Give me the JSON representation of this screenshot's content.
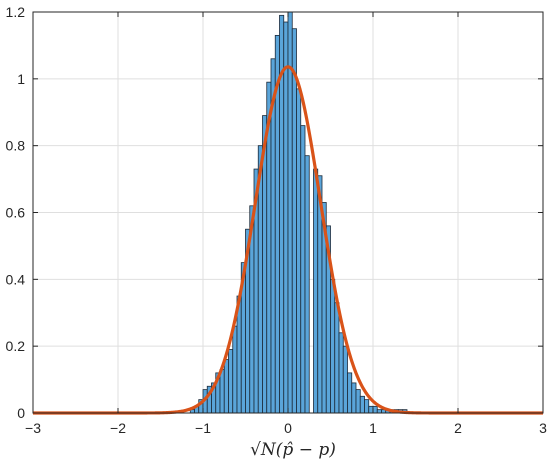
{
  "chart_data": {
    "type": "bar",
    "title": "",
    "xlabel": "√N(p̂ − p)",
    "ylabel": "",
    "xlim": [
      -3,
      3
    ],
    "ylim": [
      0,
      1.2
    ],
    "grid": true,
    "legend": "none",
    "x_ticks": [
      -3,
      -2,
      -1,
      0,
      1,
      2,
      3
    ],
    "y_ticks": [
      0,
      0.2,
      0.4,
      0.6,
      0.8,
      1,
      1.2
    ],
    "x_tick_labels": [
      "−3",
      "−2",
      "−1",
      "0",
      "1",
      "2",
      "3"
    ],
    "y_tick_labels": [
      "0",
      "0.2",
      "0.4",
      "0.6",
      "0.8",
      "1",
      "1.2"
    ],
    "series": [
      {
        "type": "histogram",
        "bin_width": 0.05,
        "bin_left_edges": [
          -1.15,
          -1.1,
          -1.05,
          -1.0,
          -0.95,
          -0.9,
          -0.85,
          -0.8,
          -0.75,
          -0.7,
          -0.65,
          -0.6,
          -0.55,
          -0.5,
          -0.45,
          -0.4,
          -0.35,
          -0.3,
          -0.25,
          -0.2,
          -0.15,
          -0.1,
          -0.05,
          0.0,
          0.05,
          0.1,
          0.15,
          0.2,
          0.25,
          0.3,
          0.35,
          0.4,
          0.45,
          0.5,
          0.55,
          0.6,
          0.65,
          0.7,
          0.75,
          0.8,
          0.85,
          0.9,
          0.95,
          1.0,
          1.05,
          1.1,
          1.15,
          1.2,
          1.25,
          1.3,
          1.35
        ],
        "values": [
          0.01,
          0.02,
          0.04,
          0.07,
          0.08,
          0.09,
          0.12,
          0.13,
          0.16,
          0.19,
          0.26,
          0.35,
          0.45,
          0.55,
          0.62,
          0.73,
          0.8,
          0.89,
          0.99,
          1.06,
          1.13,
          1.19,
          1.17,
          1.2,
          1.15,
          0.97,
          0.86,
          0.77,
          0.0,
          0.73,
          0.71,
          0.63,
          0.56,
          0.4,
          0.33,
          0.24,
          0.2,
          0.12,
          0.09,
          0.07,
          0.05,
          0.04,
          0.02,
          0.02,
          0.01,
          0.01,
          0.01,
          0.01,
          0.01,
          0.01,
          0.01
        ],
        "color": "#5aa5da",
        "edge_color": "#1b2a3a"
      },
      {
        "type": "line",
        "kind": "normal-pdf",
        "mean": 0.0,
        "std": 0.385,
        "peak": 1.036,
        "color": "#d95319"
      }
    ]
  }
}
